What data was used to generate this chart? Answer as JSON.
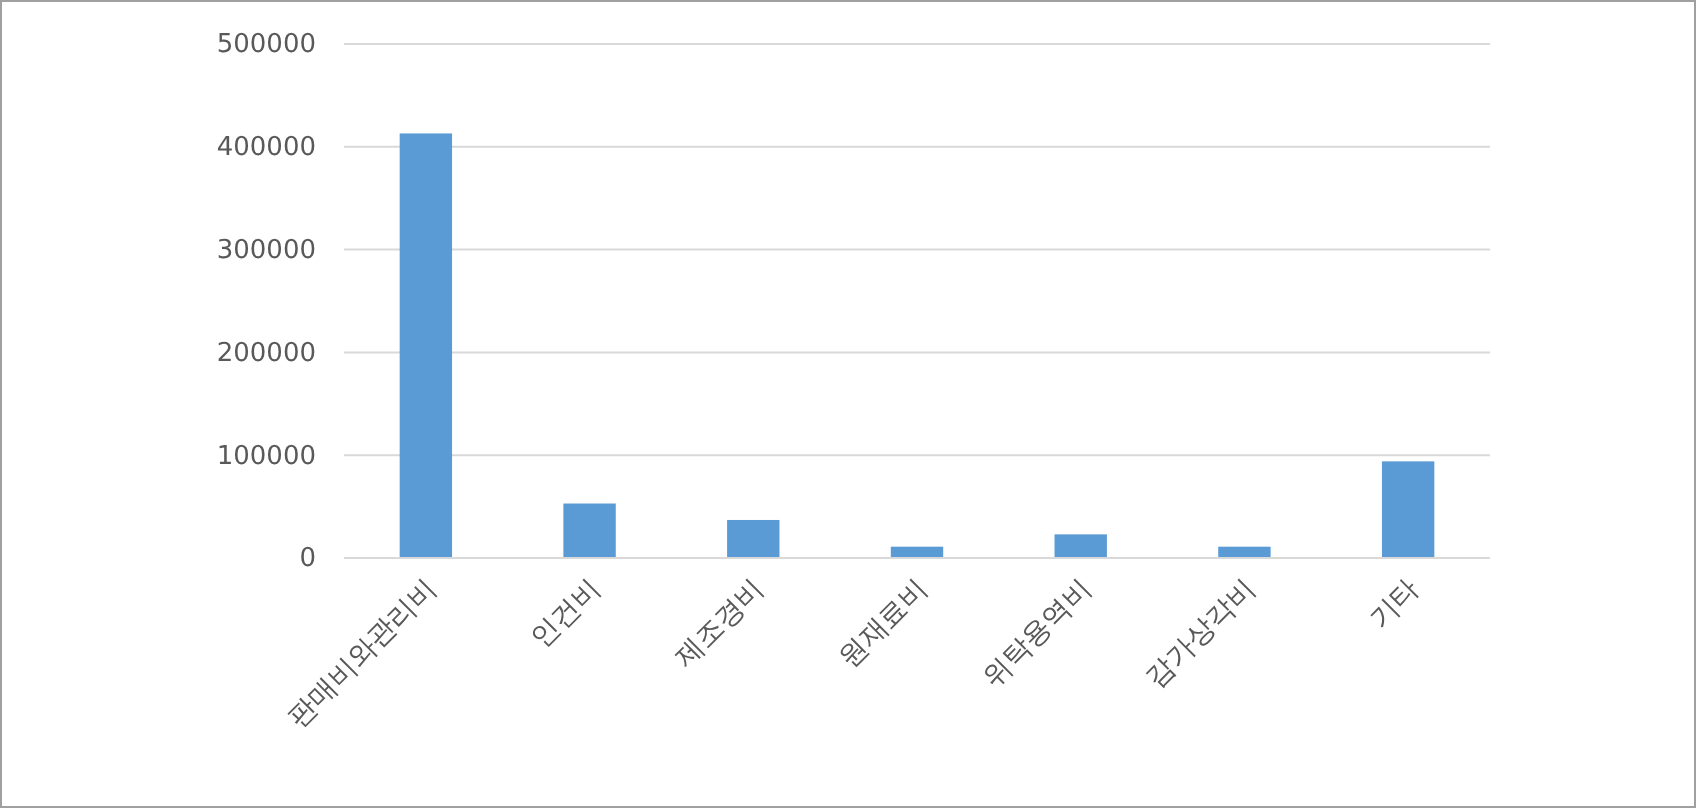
{
  "chart_data": {
    "type": "bar",
    "categories": [
      "판매비와관리비",
      "인건비",
      "제조경비",
      "원재료비",
      "위탁용역비",
      "감가상각비",
      "기타"
    ],
    "values": [
      413000,
      53000,
      37000,
      11000,
      23000,
      11000,
      94000
    ],
    "color": "#5b9bd5",
    "ylim": [
      0,
      500000
    ],
    "yticks": [
      0,
      100000,
      200000,
      300000,
      400000,
      500000
    ],
    "grid": "y"
  }
}
